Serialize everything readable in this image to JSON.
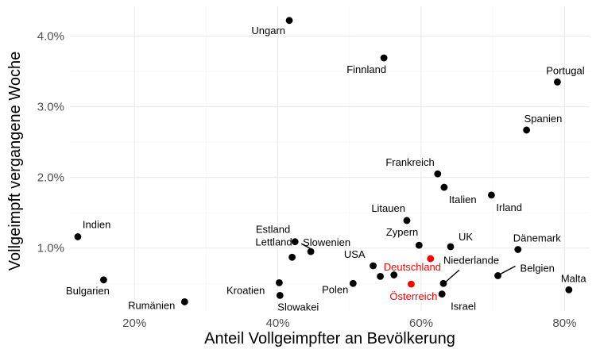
{
  "chart_data": {
    "type": "scatter",
    "title": "",
    "xlabel": "Anteil Vollgeimpfter an Bevölkerung",
    "ylabel": "Vollgeimpft vergangene Woche",
    "xlim": [
      0.11,
      0.835
    ],
    "ylim": [
      0.0011,
      0.0442
    ],
    "xticks": [
      0.2,
      0.4,
      0.6,
      0.8
    ],
    "xtick_labels": [
      "20%",
      "40%",
      "60%",
      "80%"
    ],
    "yticks": [
      0.01,
      0.02,
      0.03,
      0.04
    ],
    "ytick_labels": [
      "1.0%",
      "2.0%",
      "3.0%",
      "4.0%"
    ],
    "grid": true,
    "legend": "none",
    "colors": {
      "default": "#000000",
      "highlight": "#ff0000"
    },
    "points": [
      {
        "label": "Ungarn",
        "x": 0.416,
        "y": 0.0422
      },
      {
        "label": "Finnland",
        "x": 0.548,
        "y": 0.0369
      },
      {
        "label": "Portugal",
        "x": 0.79,
        "y": 0.0335
      },
      {
        "label": "Spanien",
        "x": 0.747,
        "y": 0.0267
      },
      {
        "label": "Frankreich",
        "x": 0.623,
        "y": 0.0205
      },
      {
        "label": "Italien",
        "x": 0.632,
        "y": 0.0186
      },
      {
        "label": "Irland",
        "x": 0.698,
        "y": 0.0175
      },
      {
        "label": "Litauen",
        "x": 0.58,
        "y": 0.0139
      },
      {
        "label": "Indien",
        "x": 0.121,
        "y": 0.0116
      },
      {
        "label": "Estland",
        "x": 0.424,
        "y": 0.0109
      },
      {
        "label": "Zypern",
        "x": 0.597,
        "y": 0.0104
      },
      {
        "label": "UK",
        "x": 0.641,
        "y": 0.0102
      },
      {
        "label": "Dänemark",
        "x": 0.735,
        "y": 0.0098
      },
      {
        "label": "Slowenien",
        "x": 0.446,
        "y": 0.0095
      },
      {
        "label": "USA",
        "x": 0.533,
        "y": 0.0075
      },
      {
        "label": "Deutschland",
        "x": 0.613,
        "y": 0.0085,
        "highlight": true
      },
      {
        "label": "Lettland",
        "x": 0.42,
        "y": 0.0087
      },
      {
        "label": "Belgien",
        "x": 0.707,
        "y": 0.0061
      },
      {
        "label": "Bulgarien",
        "x": 0.157,
        "y": 0.0055
      },
      {
        "label": "Kroatien",
        "x": 0.402,
        "y": 0.0051
      },
      {
        "label": "Polen",
        "x": 0.505,
        "y": 0.005
      },
      {
        "label": "Niederlande",
        "x": 0.631,
        "y": 0.005
      },
      {
        "label": "Österreich",
        "x": 0.586,
        "y": 0.0049,
        "highlight": true
      },
      {
        "label": "Malta",
        "x": 0.806,
        "y": 0.0041
      },
      {
        "label": "Slowakei",
        "x": 0.403,
        "y": 0.0033
      },
      {
        "label": "Israel",
        "x": 0.629,
        "y": 0.0035
      },
      {
        "label": "Rumänien",
        "x": 0.27,
        "y": 0.0024
      },
      {
        "x": 0.543,
        "y": 0.006
      },
      {
        "x": 0.562,
        "y": 0.0062
      }
    ]
  }
}
